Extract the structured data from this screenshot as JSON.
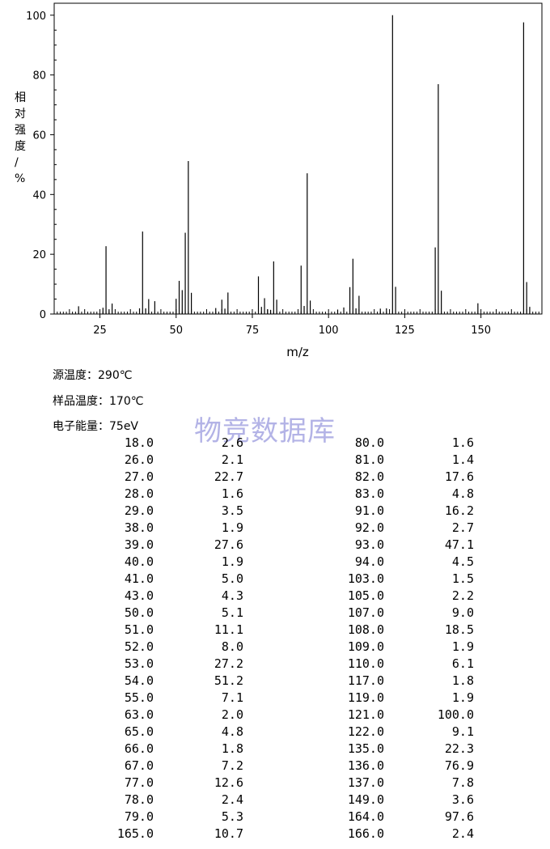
{
  "chart_data": {
    "type": "bar",
    "xlabel": "m/z",
    "ylabel": "相对强度/%",
    "xlim": [
      10,
      170
    ],
    "ylim": [
      0,
      104
    ],
    "x_ticks": [
      25,
      50,
      75,
      100,
      125,
      150
    ],
    "y_ticks": [
      0,
      20,
      40,
      60,
      80,
      100
    ],
    "peaks": [
      [
        18,
        2.6
      ],
      [
        26,
        2.1
      ],
      [
        27,
        22.7
      ],
      [
        28,
        1.6
      ],
      [
        29,
        3.5
      ],
      [
        38,
        1.9
      ],
      [
        39,
        27.6
      ],
      [
        40,
        1.9
      ],
      [
        41,
        5.0
      ],
      [
        43,
        4.3
      ],
      [
        50,
        5.1
      ],
      [
        51,
        11.1
      ],
      [
        52,
        8.0
      ],
      [
        53,
        27.2
      ],
      [
        54,
        51.2
      ],
      [
        55,
        7.1
      ],
      [
        63,
        2.0
      ],
      [
        65,
        4.8
      ],
      [
        66,
        1.8
      ],
      [
        67,
        7.2
      ],
      [
        77,
        12.6
      ],
      [
        78,
        2.4
      ],
      [
        79,
        5.3
      ],
      [
        80,
        1.6
      ],
      [
        81,
        1.4
      ],
      [
        82,
        17.6
      ],
      [
        83,
        4.8
      ],
      [
        91,
        16.2
      ],
      [
        92,
        2.7
      ],
      [
        93,
        47.1
      ],
      [
        94,
        4.5
      ],
      [
        103,
        1.5
      ],
      [
        105,
        2.2
      ],
      [
        107,
        9.0
      ],
      [
        108,
        18.5
      ],
      [
        109,
        1.9
      ],
      [
        110,
        6.1
      ],
      [
        117,
        1.8
      ],
      [
        119,
        1.9
      ],
      [
        121,
        100.0
      ],
      [
        122,
        9.1
      ],
      [
        135,
        22.3
      ],
      [
        136,
        76.9
      ],
      [
        137,
        7.8
      ],
      [
        149,
        3.6
      ],
      [
        164,
        97.6
      ],
      [
        165,
        10.7
      ],
      [
        166,
        2.4
      ]
    ]
  },
  "conditions": {
    "source_temp": "源温度：290℃",
    "sample_temp": "样品温度：170℃",
    "electron_energy": "电子能量：75eV"
  },
  "watermark": "物竞数据库",
  "table": {
    "rows": [
      [
        "18.0",
        "2.6",
        "80.0",
        "1.6"
      ],
      [
        "26.0",
        "2.1",
        "81.0",
        "1.4"
      ],
      [
        "27.0",
        "22.7",
        "82.0",
        "17.6"
      ],
      [
        "28.0",
        "1.6",
        "83.0",
        "4.8"
      ],
      [
        "29.0",
        "3.5",
        "91.0",
        "16.2"
      ],
      [
        "38.0",
        "1.9",
        "92.0",
        "2.7"
      ],
      [
        "39.0",
        "27.6",
        "93.0",
        "47.1"
      ],
      [
        "40.0",
        "1.9",
        "94.0",
        "4.5"
      ],
      [
        "41.0",
        "5.0",
        "103.0",
        "1.5"
      ],
      [
        "43.0",
        "4.3",
        "105.0",
        "2.2"
      ],
      [
        "50.0",
        "5.1",
        "107.0",
        "9.0"
      ],
      [
        "51.0",
        "11.1",
        "108.0",
        "18.5"
      ],
      [
        "52.0",
        "8.0",
        "109.0",
        "1.9"
      ],
      [
        "53.0",
        "27.2",
        "110.0",
        "6.1"
      ],
      [
        "54.0",
        "51.2",
        "117.0",
        "1.8"
      ],
      [
        "55.0",
        "7.1",
        "119.0",
        "1.9"
      ],
      [
        "63.0",
        "2.0",
        "121.0",
        "100.0"
      ],
      [
        "65.0",
        "4.8",
        "122.0",
        "9.1"
      ],
      [
        "66.0",
        "1.8",
        "135.0",
        "22.3"
      ],
      [
        "67.0",
        "7.2",
        "136.0",
        "76.9"
      ],
      [
        "77.0",
        "12.6",
        "137.0",
        "7.8"
      ],
      [
        "78.0",
        "2.4",
        "149.0",
        "3.6"
      ],
      [
        "79.0",
        "5.3",
        "164.0",
        "97.6"
      ],
      [
        "165.0",
        "10.7",
        "166.0",
        "2.4"
      ]
    ]
  }
}
